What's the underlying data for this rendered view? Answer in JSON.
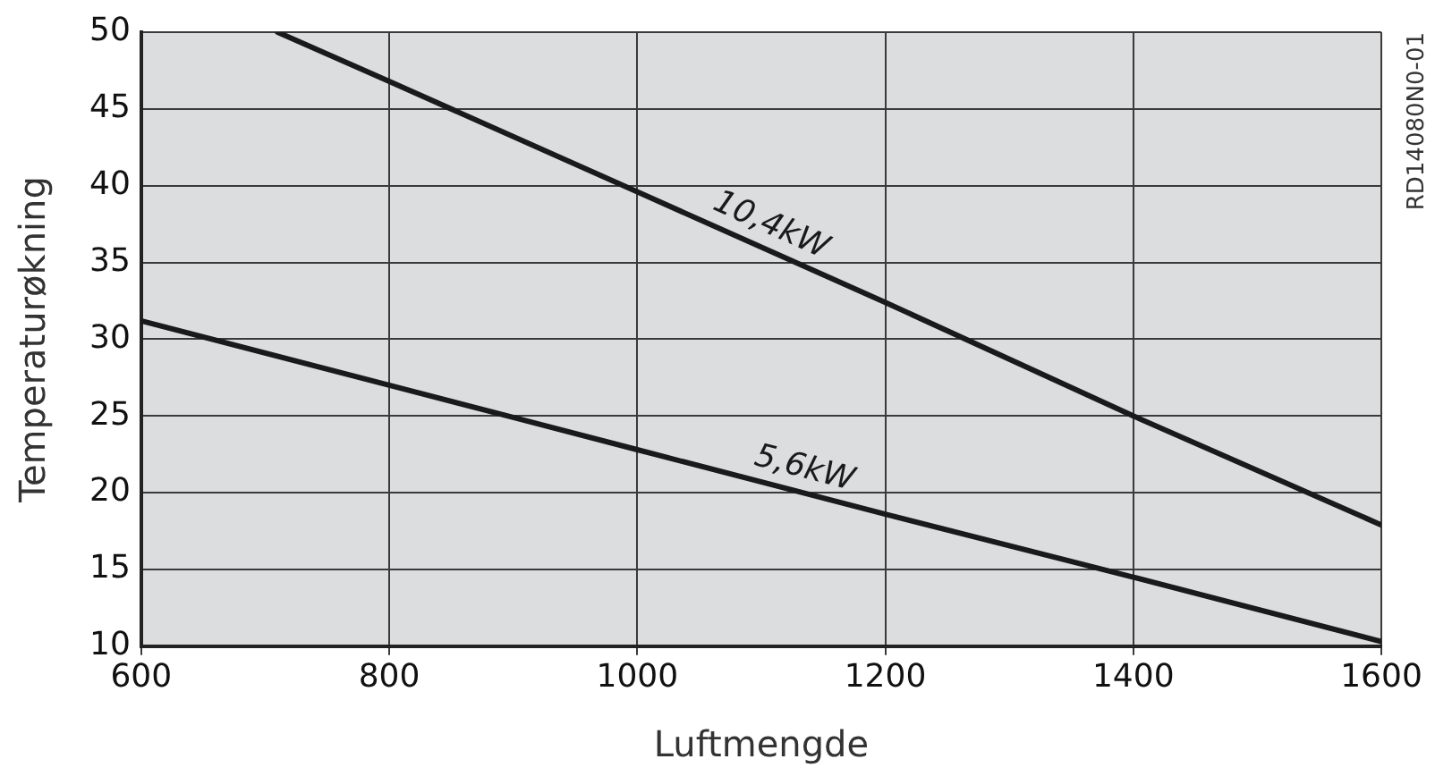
{
  "chart_data": {
    "type": "line",
    "xlabel": "Luftmengde",
    "ylabel": "Temperaturøkning",
    "xlim": [
      600,
      1600
    ],
    "xticks": [
      600,
      800,
      1000,
      1200,
      1400,
      1600
    ],
    "ylim": [
      10,
      50
    ],
    "yticks": [
      10,
      15,
      20,
      25,
      30,
      35,
      40,
      45,
      50
    ],
    "grid": true,
    "legend": false,
    "marker": "none",
    "line_style": "solid",
    "annotations": [
      "RD14080N0-01"
    ],
    "series": [
      {
        "name": "10,4kW",
        "color": "#1a1a1a",
        "x": [
          710,
          800,
          1000,
          1200,
          1400,
          1600
        ],
        "values": [
          50,
          46.8,
          39.6,
          32.4,
          25.0,
          17.9
        ]
      },
      {
        "name": "5,6kW",
        "color": "#1a1a1a",
        "x": [
          600,
          800,
          900,
          1000,
          1200,
          1400,
          1600
        ],
        "values": [
          31.2,
          27.0,
          24.9,
          22.8,
          18.6,
          14.5,
          10.3
        ]
      }
    ]
  }
}
